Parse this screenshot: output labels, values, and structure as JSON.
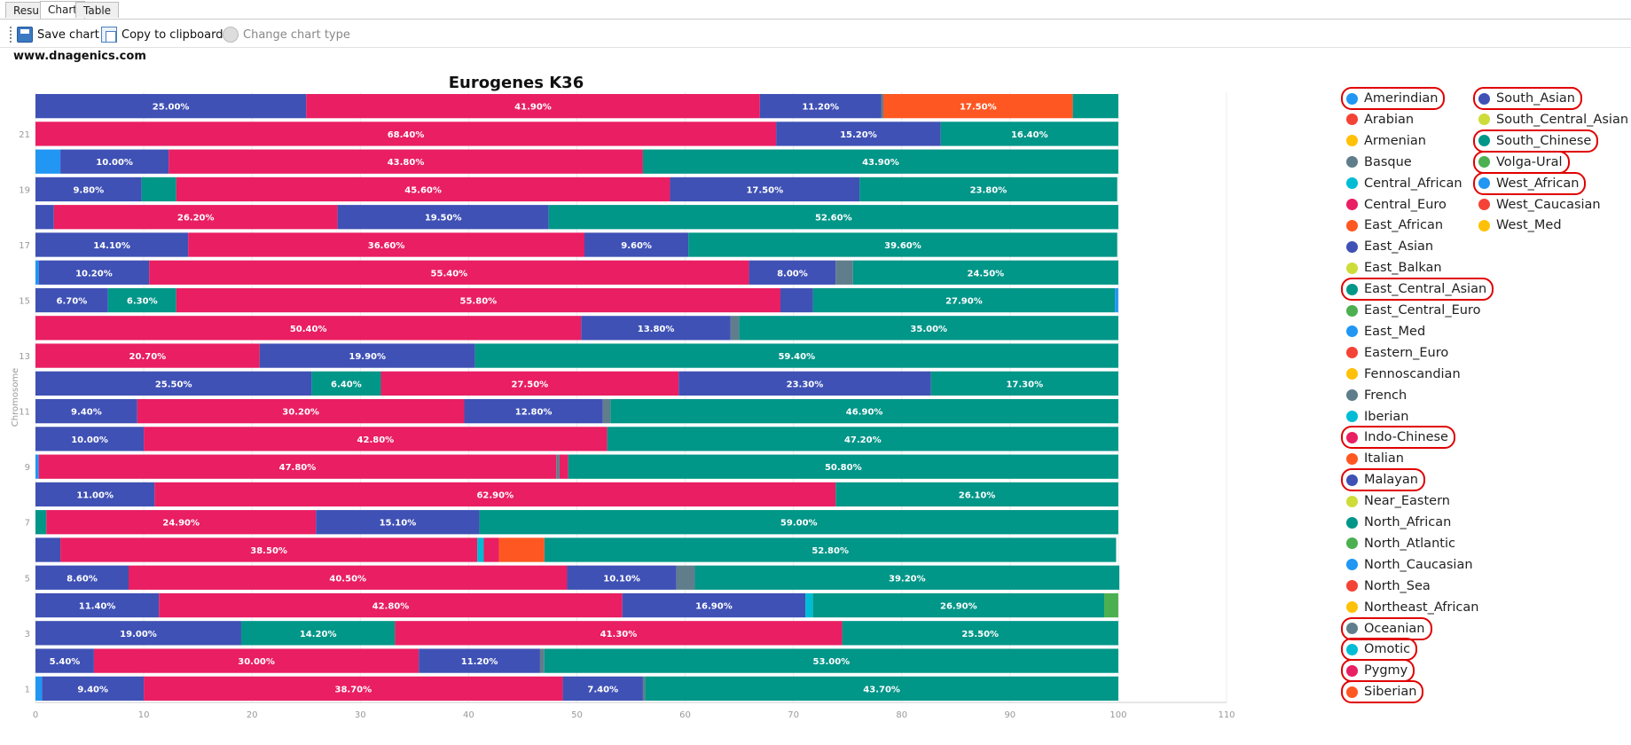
{
  "tabs": [
    {
      "label": "Results"
    },
    {
      "label": "Chart"
    },
    {
      "label": "Table"
    }
  ],
  "toolbar": {
    "save_label": "Save chart",
    "copy_label": "Copy to clipboard",
    "type_label": "Change chart type"
  },
  "watermark": "www.dnagenics.com",
  "colors": {
    "Amerindian": "#2196F3",
    "Arabian": "#F44336",
    "Armenian": "#FFC107",
    "Basque": "#607D8B",
    "Central_African": "#00BCD4",
    "Central_Euro": "#E91E63",
    "East_African": "#FF5722",
    "East_Asian": "#3F51B5",
    "East_Balkan": "#CDDC39",
    "East_Central_Asian": "#009688",
    "East_Central_Euro": "#4CAF50",
    "East_Med": "#2196F3",
    "Eastern_Euro": "#F44336",
    "Fennoscandian": "#FFC107",
    "French": "#607D8B",
    "Iberian": "#00BCD4",
    "Indo-Chinese": "#E91E63",
    "Italian": "#FF5722",
    "Malayan": "#3F51B5",
    "Near_Eastern": "#CDDC39",
    "North_African": "#009688",
    "North_Atlantic": "#4CAF50",
    "North_Caucasian": "#2196F3",
    "North_Sea": "#F44336",
    "Northeast_African": "#FFC107",
    "Oceanian": "#607D8B",
    "Omotic": "#00BCD4",
    "Pygmy": "#E91E63",
    "Siberian": "#FF5722",
    "South_Asian": "#3F51B5",
    "South_Central_Asian": "#CDDC39",
    "South_Chinese": "#009688",
    "Volga-Ural": "#4CAF50",
    "West_African": "#2196F3",
    "West_Caucasian": "#F44336",
    "West_Med": "#FFC107"
  },
  "legend": [
    {
      "label": "Amerindian"
    },
    {
      "label": "Arabian"
    },
    {
      "label": "Armenian"
    },
    {
      "label": "Basque"
    },
    {
      "label": "Central_African"
    },
    {
      "label": "Central_Euro"
    },
    {
      "label": "East_African"
    },
    {
      "label": "East_Asian"
    },
    {
      "label": "East_Balkan"
    },
    {
      "label": "East_Central_Asian"
    },
    {
      "label": "East_Central_Euro"
    },
    {
      "label": "East_Med"
    },
    {
      "label": "Eastern_Euro"
    },
    {
      "label": "Fennoscandian"
    },
    {
      "label": "French"
    },
    {
      "label": "Iberian"
    },
    {
      "label": "Indo-Chinese"
    },
    {
      "label": "Italian"
    },
    {
      "label": "Malayan"
    },
    {
      "label": "Near_Eastern"
    },
    {
      "label": "North_African"
    },
    {
      "label": "North_Atlantic"
    },
    {
      "label": "North_Caucasian"
    },
    {
      "label": "North_Sea"
    },
    {
      "label": "Northeast_African"
    },
    {
      "label": "Oceanian"
    },
    {
      "label": "Omotic"
    },
    {
      "label": "Pygmy"
    },
    {
      "label": "Siberian"
    },
    {
      "label": "South_Asian"
    },
    {
      "label": "South_Central_Asian"
    },
    {
      "label": "South_Chinese"
    },
    {
      "label": "Volga-Ural"
    },
    {
      "label": "West_African"
    },
    {
      "label": "West_Caucasian"
    },
    {
      "label": "West_Med"
    }
  ],
  "legend_circled": [
    "Amerindian",
    "East_Central_Asian",
    "Indo-Chinese",
    "Malayan",
    "Oceanian",
    "Omotic",
    "Pygmy",
    "Siberian",
    "South_Asian",
    "South_Chinese",
    "Volga-Ural",
    "West_African"
  ],
  "chart_data": {
    "type": "bar",
    "orientation": "horizontal",
    "stacked": true,
    "title": "Eurogenes K36",
    "ylabel": "Chromosome",
    "xlabel": "",
    "xlim": [
      0,
      110
    ],
    "xticks": [
      0,
      10,
      20,
      30,
      40,
      50,
      60,
      70,
      80,
      90,
      100,
      110
    ],
    "yticks": [
      "1",
      "3",
      "5",
      "7",
      "9",
      "11",
      "13",
      "15",
      "17",
      "19",
      "21"
    ],
    "grid": true,
    "legend_position": "right",
    "categories": [
      "1",
      "2",
      "3",
      "4",
      "5",
      "6",
      "7",
      "8",
      "9",
      "10",
      "11",
      "12",
      "13",
      "14",
      "15",
      "16",
      "17",
      "18",
      "19",
      "20",
      "21",
      "22"
    ],
    "bars": [
      {
        "category": "1",
        "segments": [
          [
            "Amerindian",
            0.6
          ],
          [
            "South_Asian",
            9.4
          ],
          [
            "Indo-Chinese",
            38.7
          ],
          [
            "Malayan",
            7.4
          ],
          [
            "Oceanian",
            0.2
          ],
          [
            "South_Chinese",
            43.7
          ]
        ]
      },
      {
        "category": "2",
        "segments": [
          [
            "Malayan",
            5.4
          ],
          [
            "Indo-Chinese",
            30.0
          ],
          [
            "South_Asian",
            11.2
          ],
          [
            "Oceanian",
            0.4
          ],
          [
            "South_Chinese",
            53.0
          ]
        ]
      },
      {
        "category": "3",
        "segments": [
          [
            "South_Asian",
            19.0
          ],
          [
            "East_Central_Asian",
            14.2
          ],
          [
            "Indo-Chinese",
            41.3
          ],
          [
            "South_Chinese",
            25.5
          ]
        ]
      },
      {
        "category": "4",
        "segments": [
          [
            "Malayan",
            11.4
          ],
          [
            "Indo-Chinese",
            42.8
          ],
          [
            "South_Asian",
            16.9
          ],
          [
            "Omotic",
            0.7
          ],
          [
            "South_Chinese",
            26.9
          ],
          [
            "Volga-Ural",
            1.3
          ]
        ]
      },
      {
        "category": "5",
        "segments": [
          [
            "Malayan",
            8.6
          ],
          [
            "Indo-Chinese",
            40.5
          ],
          [
            "South_Asian",
            10.1
          ],
          [
            "Oceanian",
            1.7
          ],
          [
            "South_Chinese",
            39.2
          ]
        ]
      },
      {
        "category": "6",
        "segments": [
          [
            "South_Asian",
            2.3
          ],
          [
            "Indo-Chinese",
            38.5
          ],
          [
            "Omotic",
            0.6
          ],
          [
            "Pygmy",
            1.4
          ],
          [
            "Siberian",
            4.2
          ],
          [
            "South_Chinese",
            52.8
          ]
        ]
      },
      {
        "category": "7",
        "segments": [
          [
            "East_Central_Asian",
            1.0
          ],
          [
            "Indo-Chinese",
            24.9
          ],
          [
            "South_Asian",
            15.1
          ],
          [
            "South_Chinese",
            59.0
          ]
        ]
      },
      {
        "category": "8",
        "segments": [
          [
            "Malayan",
            11.0
          ],
          [
            "Indo-Chinese",
            62.9
          ],
          [
            "South_Chinese",
            26.1
          ]
        ]
      },
      {
        "category": "9",
        "segments": [
          [
            "Amerindian",
            0.3
          ],
          [
            "Indo-Chinese",
            47.8
          ],
          [
            "Oceanian",
            0.3
          ],
          [
            "Pygmy",
            0.8
          ],
          [
            "South_Chinese",
            50.8
          ]
        ]
      },
      {
        "category": "10",
        "segments": [
          [
            "Malayan",
            10.0
          ],
          [
            "Indo-Chinese",
            42.8
          ],
          [
            "South_Chinese",
            47.2
          ]
        ]
      },
      {
        "category": "11",
        "segments": [
          [
            "Malayan",
            9.4
          ],
          [
            "Indo-Chinese",
            30.2
          ],
          [
            "South_Asian",
            12.8
          ],
          [
            "Oceanian",
            0.7
          ],
          [
            "South_Chinese",
            46.9
          ]
        ]
      },
      {
        "category": "12",
        "segments": [
          [
            "South_Asian",
            25.5
          ],
          [
            "East_Central_Asian",
            6.4
          ],
          [
            "Indo-Chinese",
            27.5
          ],
          [
            "Malayan",
            23.3
          ],
          [
            "South_Chinese",
            17.3
          ]
        ]
      },
      {
        "category": "13",
        "segments": [
          [
            "Indo-Chinese",
            20.7
          ],
          [
            "South_Asian",
            19.9
          ],
          [
            "South_Chinese",
            59.4
          ]
        ]
      },
      {
        "category": "14",
        "segments": [
          [
            "Indo-Chinese",
            50.4
          ],
          [
            "South_Asian",
            13.8
          ],
          [
            "Oceanian",
            0.8
          ],
          [
            "South_Chinese",
            35.0
          ]
        ]
      },
      {
        "category": "15",
        "segments": [
          [
            "Malayan",
            6.7
          ],
          [
            "East_Central_Asian",
            6.3
          ],
          [
            "Indo-Chinese",
            55.8
          ],
          [
            "South_Asian",
            3.0
          ],
          [
            "South_Chinese",
            27.9
          ],
          [
            "West_African",
            0.3
          ]
        ]
      },
      {
        "category": "16",
        "segments": [
          [
            "Amerindian",
            0.3
          ],
          [
            "Malayan",
            10.2
          ],
          [
            "Indo-Chinese",
            55.4
          ],
          [
            "South_Asian",
            8.0
          ],
          [
            "Oceanian",
            0.8
          ],
          [
            "Basque",
            0.8
          ],
          [
            "South_Chinese",
            24.5
          ]
        ]
      },
      {
        "category": "17",
        "segments": [
          [
            "Malayan",
            14.1
          ],
          [
            "Indo-Chinese",
            36.6
          ],
          [
            "South_Asian",
            9.6
          ],
          [
            "South_Chinese",
            39.6
          ]
        ]
      },
      {
        "category": "18",
        "segments": [
          [
            "South_Asian",
            1.7
          ],
          [
            "Indo-Chinese",
            26.2
          ],
          [
            "Malayan",
            19.5
          ],
          [
            "South_Chinese",
            52.6
          ]
        ]
      },
      {
        "category": "19",
        "segments": [
          [
            "Malayan",
            9.8
          ],
          [
            "East_Central_Asian",
            3.2
          ],
          [
            "Indo-Chinese",
            45.6
          ],
          [
            "South_Asian",
            17.5
          ],
          [
            "South_Chinese",
            23.8
          ]
        ]
      },
      {
        "category": "20",
        "segments": [
          [
            "Amerindian",
            2.3
          ],
          [
            "Malayan",
            10.0
          ],
          [
            "Indo-Chinese",
            43.8
          ],
          [
            "South_Chinese",
            43.9
          ]
        ]
      },
      {
        "category": "21",
        "segments": [
          [
            "Indo-Chinese",
            68.4
          ],
          [
            "South_Asian",
            15.2
          ],
          [
            "South_Chinese",
            16.4
          ]
        ]
      },
      {
        "category": "22",
        "segments": [
          [
            "South_Asian",
            25.0
          ],
          [
            "Indo-Chinese",
            41.9
          ],
          [
            "Malayan",
            11.2
          ],
          [
            "Oceanian",
            0.2
          ],
          [
            "Siberian",
            17.5
          ],
          [
            "South_Chinese",
            4.2
          ]
        ]
      }
    ],
    "label_threshold": 5
  }
}
